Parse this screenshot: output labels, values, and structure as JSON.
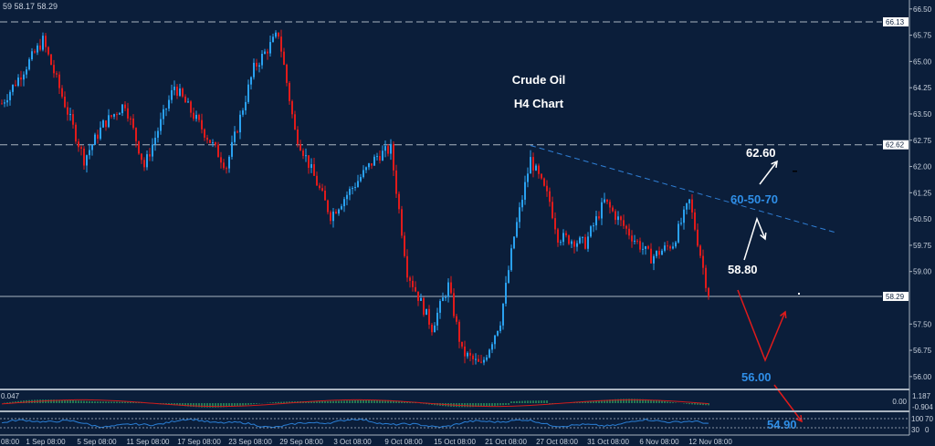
{
  "header": {
    "ohlc_readout": "59 58.17 58.29"
  },
  "chart_data": {
    "type": "candlestick",
    "title": "Crude Oil",
    "subtitle": "H4 Chart",
    "y_ticks": [
      "66.50",
      "65.75",
      "65.00",
      "64.25",
      "63.50",
      "62.75",
      "62.00",
      "61.25",
      "60.50",
      "59.75",
      "59.00",
      "57.50",
      "56.75",
      "56.00"
    ],
    "ylim": [
      55.6,
      66.6
    ],
    "x_ticks": [
      "08:00",
      "1 Sep 08:00",
      "5 Sep 08:00",
      "11 Sep 08:00",
      "17 Sep 08:00",
      "23 Sep 08:00",
      "29 Sep 08:00",
      "3 Oct 08:00",
      "9 Oct 08:00",
      "15 Oct 08:00",
      "21 Oct 08:00",
      "27 Oct 08:00",
      "31 Oct 08:00",
      "6 Nov 08:00",
      "12 Nov 08:00"
    ],
    "price_path": [
      {
        "bar": 0,
        "price": 63.8
      },
      {
        "bar": 15,
        "price": 65.6
      },
      {
        "bar": 30,
        "price": 62.2
      },
      {
        "bar": 37,
        "price": 63.2
      },
      {
        "bar": 45,
        "price": 63.8
      },
      {
        "bar": 52,
        "price": 62.0
      },
      {
        "bar": 63,
        "price": 64.3
      },
      {
        "bar": 82,
        "price": 62.0
      },
      {
        "bar": 92,
        "price": 64.8
      },
      {
        "bar": 101,
        "price": 65.8
      },
      {
        "bar": 107,
        "price": 63.0
      },
      {
        "bar": 120,
        "price": 60.6
      },
      {
        "bar": 137,
        "price": 62.3
      },
      {
        "bar": 142,
        "price": 62.5
      },
      {
        "bar": 148,
        "price": 59.0
      },
      {
        "bar": 157,
        "price": 57.4
      },
      {
        "bar": 163,
        "price": 58.6
      },
      {
        "bar": 168,
        "price": 56.7
      },
      {
        "bar": 175,
        "price": 56.3
      },
      {
        "bar": 182,
        "price": 57.6
      },
      {
        "bar": 187,
        "price": 60.0
      },
      {
        "bar": 193,
        "price": 62.2
      },
      {
        "bar": 200,
        "price": 61.0
      },
      {
        "bar": 203,
        "price": 60.0
      },
      {
        "bar": 213,
        "price": 59.8
      },
      {
        "bar": 220,
        "price": 61.0
      },
      {
        "bar": 230,
        "price": 60.0
      },
      {
        "bar": 237,
        "price": 59.4
      },
      {
        "bar": 245,
        "price": 59.8
      },
      {
        "bar": 251,
        "price": 61.0
      },
      {
        "bar": 255,
        "price": 59.5
      },
      {
        "bar": 258,
        "price": 58.3
      }
    ],
    "horizontal_levels": [
      {
        "price": 66.13,
        "label": "66.13",
        "style": "dashed"
      },
      {
        "price": 62.62,
        "label": "62.62",
        "style": "dashed"
      },
      {
        "price": 58.29,
        "label": "58.29",
        "style": "solid"
      }
    ],
    "trendline": {
      "from": {
        "bar": 193,
        "price": 62.6
      },
      "to": {
        "bar": 305,
        "price": 60.1
      },
      "color": "#2f7fd6"
    },
    "annotations": [
      {
        "text": "62.60",
        "color": "#ffffff"
      },
      {
        "text": "60-50-70",
        "color": "#2f8fe8"
      },
      {
        "text": "58.80",
        "color": "#ffffff"
      },
      {
        "text": "56.00",
        "color": "#2f8fe8"
      },
      {
        "text": "54.90",
        "color": "#2f8fe8"
      }
    ],
    "colors": {
      "background": "#0b1e3a",
      "bull": "#2aa1f0",
      "bear": "#e01b1b",
      "grid_line": "#aab4c0"
    },
    "macd_panel": {
      "value_label": "0.047",
      "scale": [
        "1.187",
        "0.00",
        "-0.904"
      ]
    },
    "oscillator_panel": {
      "scale": [
        "100",
        "70",
        "30",
        "0"
      ]
    }
  }
}
